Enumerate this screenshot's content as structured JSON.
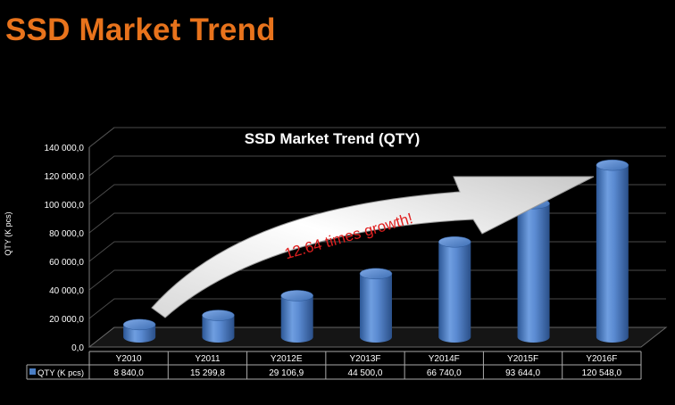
{
  "slide": {
    "title": "SSD Market Trend"
  },
  "chart_data": {
    "type": "bar",
    "title": "SSD Market Trend (QTY)",
    "ylabel": "QTY (K pcs)",
    "xlabel": "",
    "ylim": [
      0,
      140000
    ],
    "yticks": [
      0,
      20000,
      40000,
      60000,
      80000,
      100000,
      120000,
      140000
    ],
    "ytick_labels": [
      "0,0",
      "20 000,0",
      "40 000,0",
      "60 000,0",
      "80 000,0",
      "100 000,0",
      "120 000,0",
      "140 000,0"
    ],
    "categories": [
      "Y2010",
      "Y2011",
      "Y2012E",
      "Y2013F",
      "Y2014F",
      "Y2015F",
      "Y2016F"
    ],
    "series": [
      {
        "name": "QTY (K pcs)",
        "values": [
          8840,
          15299.8,
          29106.9,
          44500,
          66740,
          93644,
          120548
        ],
        "value_labels": [
          "8 840,0",
          "15 299,8",
          "29 106,9",
          "44 500,0",
          "66 740,0",
          "93 644,0",
          "120 548,0"
        ]
      }
    ],
    "annotation": "12.64 times growth!",
    "grid": true,
    "legend": "data-table",
    "colors": {
      "bar": "#4a7ec4",
      "annotation_text": "#e02020",
      "grid": "#555555"
    }
  }
}
